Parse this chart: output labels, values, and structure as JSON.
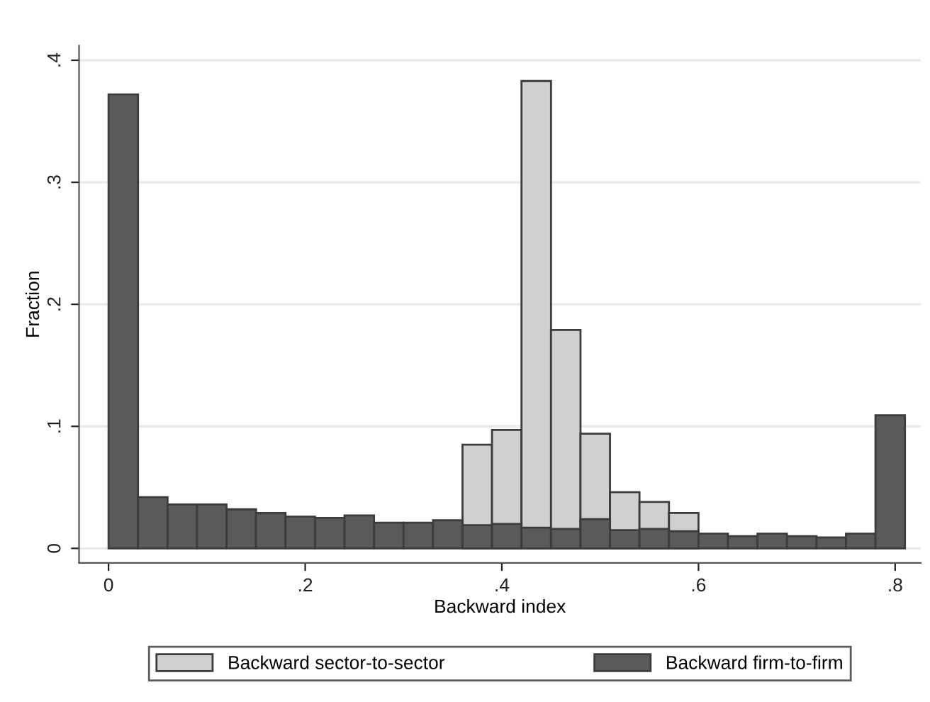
{
  "chart_data": {
    "type": "histogram",
    "xlabel": "Backward index",
    "ylabel": "Fraction",
    "bins": [
      0,
      0.03,
      0.06,
      0.09,
      0.12,
      0.15,
      0.18,
      0.21,
      0.24,
      0.27,
      0.3,
      0.33,
      0.36,
      0.39,
      0.42,
      0.45,
      0.48,
      0.51,
      0.54,
      0.57,
      0.6,
      0.63,
      0.66,
      0.69,
      0.72,
      0.75,
      0.78,
      0.81
    ],
    "series": [
      {
        "name": "Backward sector-to-sector",
        "color": "#d0d0d0",
        "values": [
          null,
          null,
          null,
          null,
          null,
          null,
          null,
          null,
          null,
          null,
          null,
          null,
          0.085,
          0.097,
          0.383,
          0.179,
          0.094,
          0.046,
          0.038,
          0.029,
          null,
          null,
          null,
          null,
          null,
          null,
          null
        ]
      },
      {
        "name": "Backward firm-to-firm",
        "color": "#5a5a5a",
        "values": [
          0.372,
          0.042,
          0.036,
          0.036,
          0.032,
          0.029,
          0.026,
          0.025,
          0.027,
          0.021,
          0.021,
          0.023,
          0.019,
          0.02,
          0.017,
          0.016,
          0.024,
          0.015,
          0.016,
          0.014,
          0.012,
          0.01,
          0.012,
          0.01,
          0.009,
          0.012,
          0.109
        ]
      }
    ],
    "xlim": [
      -0.03,
      0.826
    ],
    "ylim": [
      -0.012,
      0.412
    ],
    "xticks": [
      {
        "value": 0,
        "label": "0"
      },
      {
        "value": 0.2,
        "label": ".2"
      },
      {
        "value": 0.4,
        "label": ".4"
      },
      {
        "value": 0.6,
        "label": ".6"
      },
      {
        "value": 0.8,
        "label": ".8"
      }
    ],
    "yticks": [
      {
        "value": 0,
        "label": "0"
      },
      {
        "value": 0.1,
        "label": ".1"
      },
      {
        "value": 0.2,
        "label": ".2"
      },
      {
        "value": 0.3,
        "label": ".3"
      },
      {
        "value": 0.4,
        "label": ".4"
      }
    ],
    "grid": "y",
    "legend": "bottom"
  }
}
